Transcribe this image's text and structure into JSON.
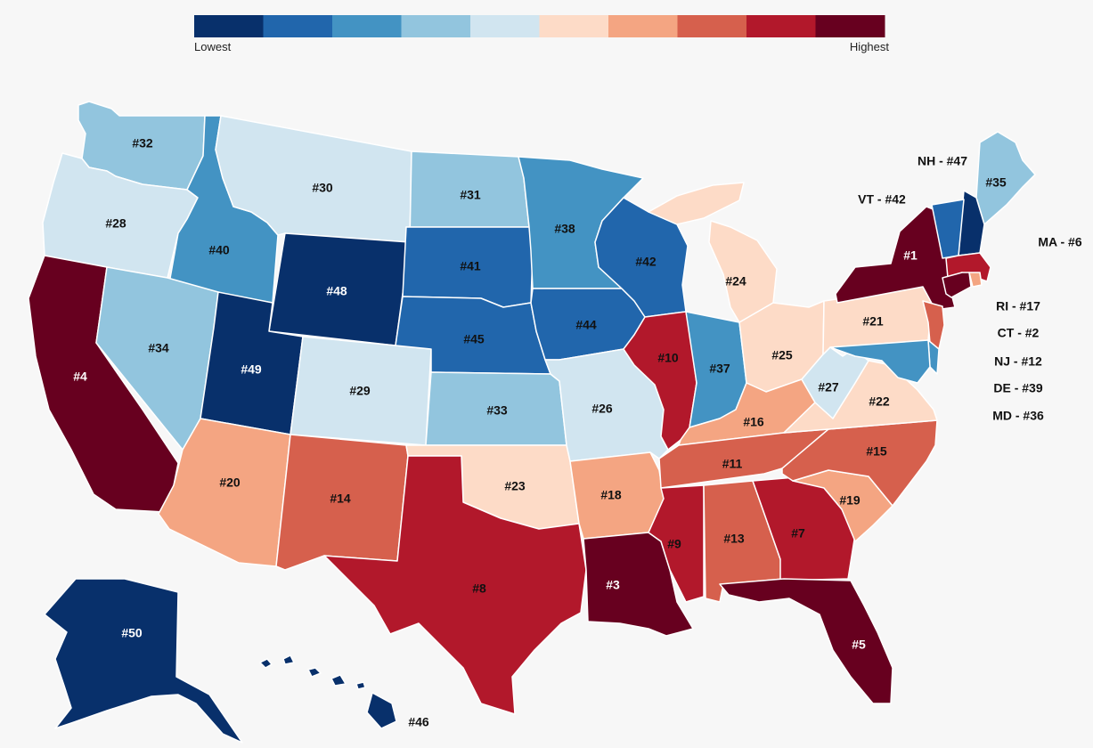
{
  "legend": {
    "low_label": "Lowest",
    "high_label": "Highest",
    "colors": [
      "#08306b",
      "#2166ac",
      "#4393c3",
      "#92c5de",
      "#d1e5f0",
      "#fddbc7",
      "#f4a582",
      "#d6604d",
      "#b2182b",
      "#67001f"
    ]
  },
  "states": [
    {
      "code": "AK",
      "rank": "#50",
      "color": "#08306b"
    },
    {
      "code": "HI",
      "rank": "#46",
      "color": "#08306b"
    },
    {
      "code": "WA",
      "rank": "#32",
      "color": "#92c5de"
    },
    {
      "code": "OR",
      "rank": "#28",
      "color": "#d1e5f0"
    },
    {
      "code": "CA",
      "rank": "#4",
      "color": "#67001f"
    },
    {
      "code": "ID",
      "rank": "#40",
      "color": "#4393c3"
    },
    {
      "code": "NV",
      "rank": "#34",
      "color": "#92c5de"
    },
    {
      "code": "MT",
      "rank": "#30",
      "color": "#d1e5f0"
    },
    {
      "code": "WY",
      "rank": "#48",
      "color": "#08306b"
    },
    {
      "code": "UT",
      "rank": "#49",
      "color": "#08306b"
    },
    {
      "code": "AZ",
      "rank": "#20",
      "color": "#f4a582"
    },
    {
      "code": "CO",
      "rank": "#29",
      "color": "#d1e5f0"
    },
    {
      "code": "NM",
      "rank": "#14",
      "color": "#d6604d"
    },
    {
      "code": "ND",
      "rank": "#31",
      "color": "#92c5de"
    },
    {
      "code": "SD",
      "rank": "#41",
      "color": "#2166ac"
    },
    {
      "code": "NE",
      "rank": "#45",
      "color": "#2166ac"
    },
    {
      "code": "KS",
      "rank": "#33",
      "color": "#92c5de"
    },
    {
      "code": "OK",
      "rank": "#23",
      "color": "#fddbc7"
    },
    {
      "code": "TX",
      "rank": "#8",
      "color": "#b2182b"
    },
    {
      "code": "MN",
      "rank": "#38",
      "color": "#4393c3"
    },
    {
      "code": "IA",
      "rank": "#44",
      "color": "#2166ac"
    },
    {
      "code": "MO",
      "rank": "#26",
      "color": "#d1e5f0"
    },
    {
      "code": "AR",
      "rank": "#18",
      "color": "#f4a582"
    },
    {
      "code": "LA",
      "rank": "#3",
      "color": "#67001f"
    },
    {
      "code": "WI",
      "rank": "#42",
      "color": "#2166ac"
    },
    {
      "code": "IL",
      "rank": "#10",
      "color": "#b2182b"
    },
    {
      "code": "MI",
      "rank": "#24",
      "color": "#fddbc7"
    },
    {
      "code": "IN",
      "rank": "#37",
      "color": "#4393c3"
    },
    {
      "code": "OH",
      "rank": "#25",
      "color": "#fddbc7"
    },
    {
      "code": "KY",
      "rank": "#16",
      "color": "#f4a582"
    },
    {
      "code": "TN",
      "rank": "#11",
      "color": "#d6604d"
    },
    {
      "code": "MS",
      "rank": "#9",
      "color": "#b2182b"
    },
    {
      "code": "AL",
      "rank": "#13",
      "color": "#d6604d"
    },
    {
      "code": "GA",
      "rank": "#7",
      "color": "#b2182b"
    },
    {
      "code": "FL",
      "rank": "#5",
      "color": "#67001f"
    },
    {
      "code": "SC",
      "rank": "#19",
      "color": "#f4a582"
    },
    {
      "code": "NC",
      "rank": "#15",
      "color": "#d6604d"
    },
    {
      "code": "VA",
      "rank": "#22",
      "color": "#fddbc7"
    },
    {
      "code": "WV",
      "rank": "#27",
      "color": "#d1e5f0"
    },
    {
      "code": "PA",
      "rank": "#21",
      "color": "#fddbc7"
    },
    {
      "code": "NY",
      "rank": "#1",
      "color": "#67001f"
    },
    {
      "code": "ME",
      "rank": "#35",
      "color": "#92c5de"
    },
    {
      "code": "NH",
      "rank": "#47",
      "color": "#08306b"
    },
    {
      "code": "VT",
      "rank": "#42",
      "color": "#2166ac"
    },
    {
      "code": "MA",
      "rank": "#6",
      "color": "#b2182b"
    },
    {
      "code": "RI",
      "rank": "#17",
      "color": "#f4a582"
    },
    {
      "code": "CT",
      "rank": "#2",
      "color": "#67001f"
    },
    {
      "code": "NJ",
      "rank": "#12",
      "color": "#d6604d"
    },
    {
      "code": "DE",
      "rank": "#39",
      "color": "#4393c3"
    },
    {
      "code": "MD",
      "rank": "#36",
      "color": "#4393c3"
    }
  ],
  "side_labels": [
    {
      "code": "NH",
      "text": "NH - #47"
    },
    {
      "code": "VT",
      "text": "VT - #42"
    },
    {
      "code": "MA",
      "text": "MA - #6"
    },
    {
      "code": "RI",
      "text": "RI - #17"
    },
    {
      "code": "CT",
      "text": "CT - #2"
    },
    {
      "code": "NJ",
      "text": "NJ - #12"
    },
    {
      "code": "DE",
      "text": "DE - #39"
    },
    {
      "code": "MD",
      "text": "MD - #36"
    }
  ]
}
